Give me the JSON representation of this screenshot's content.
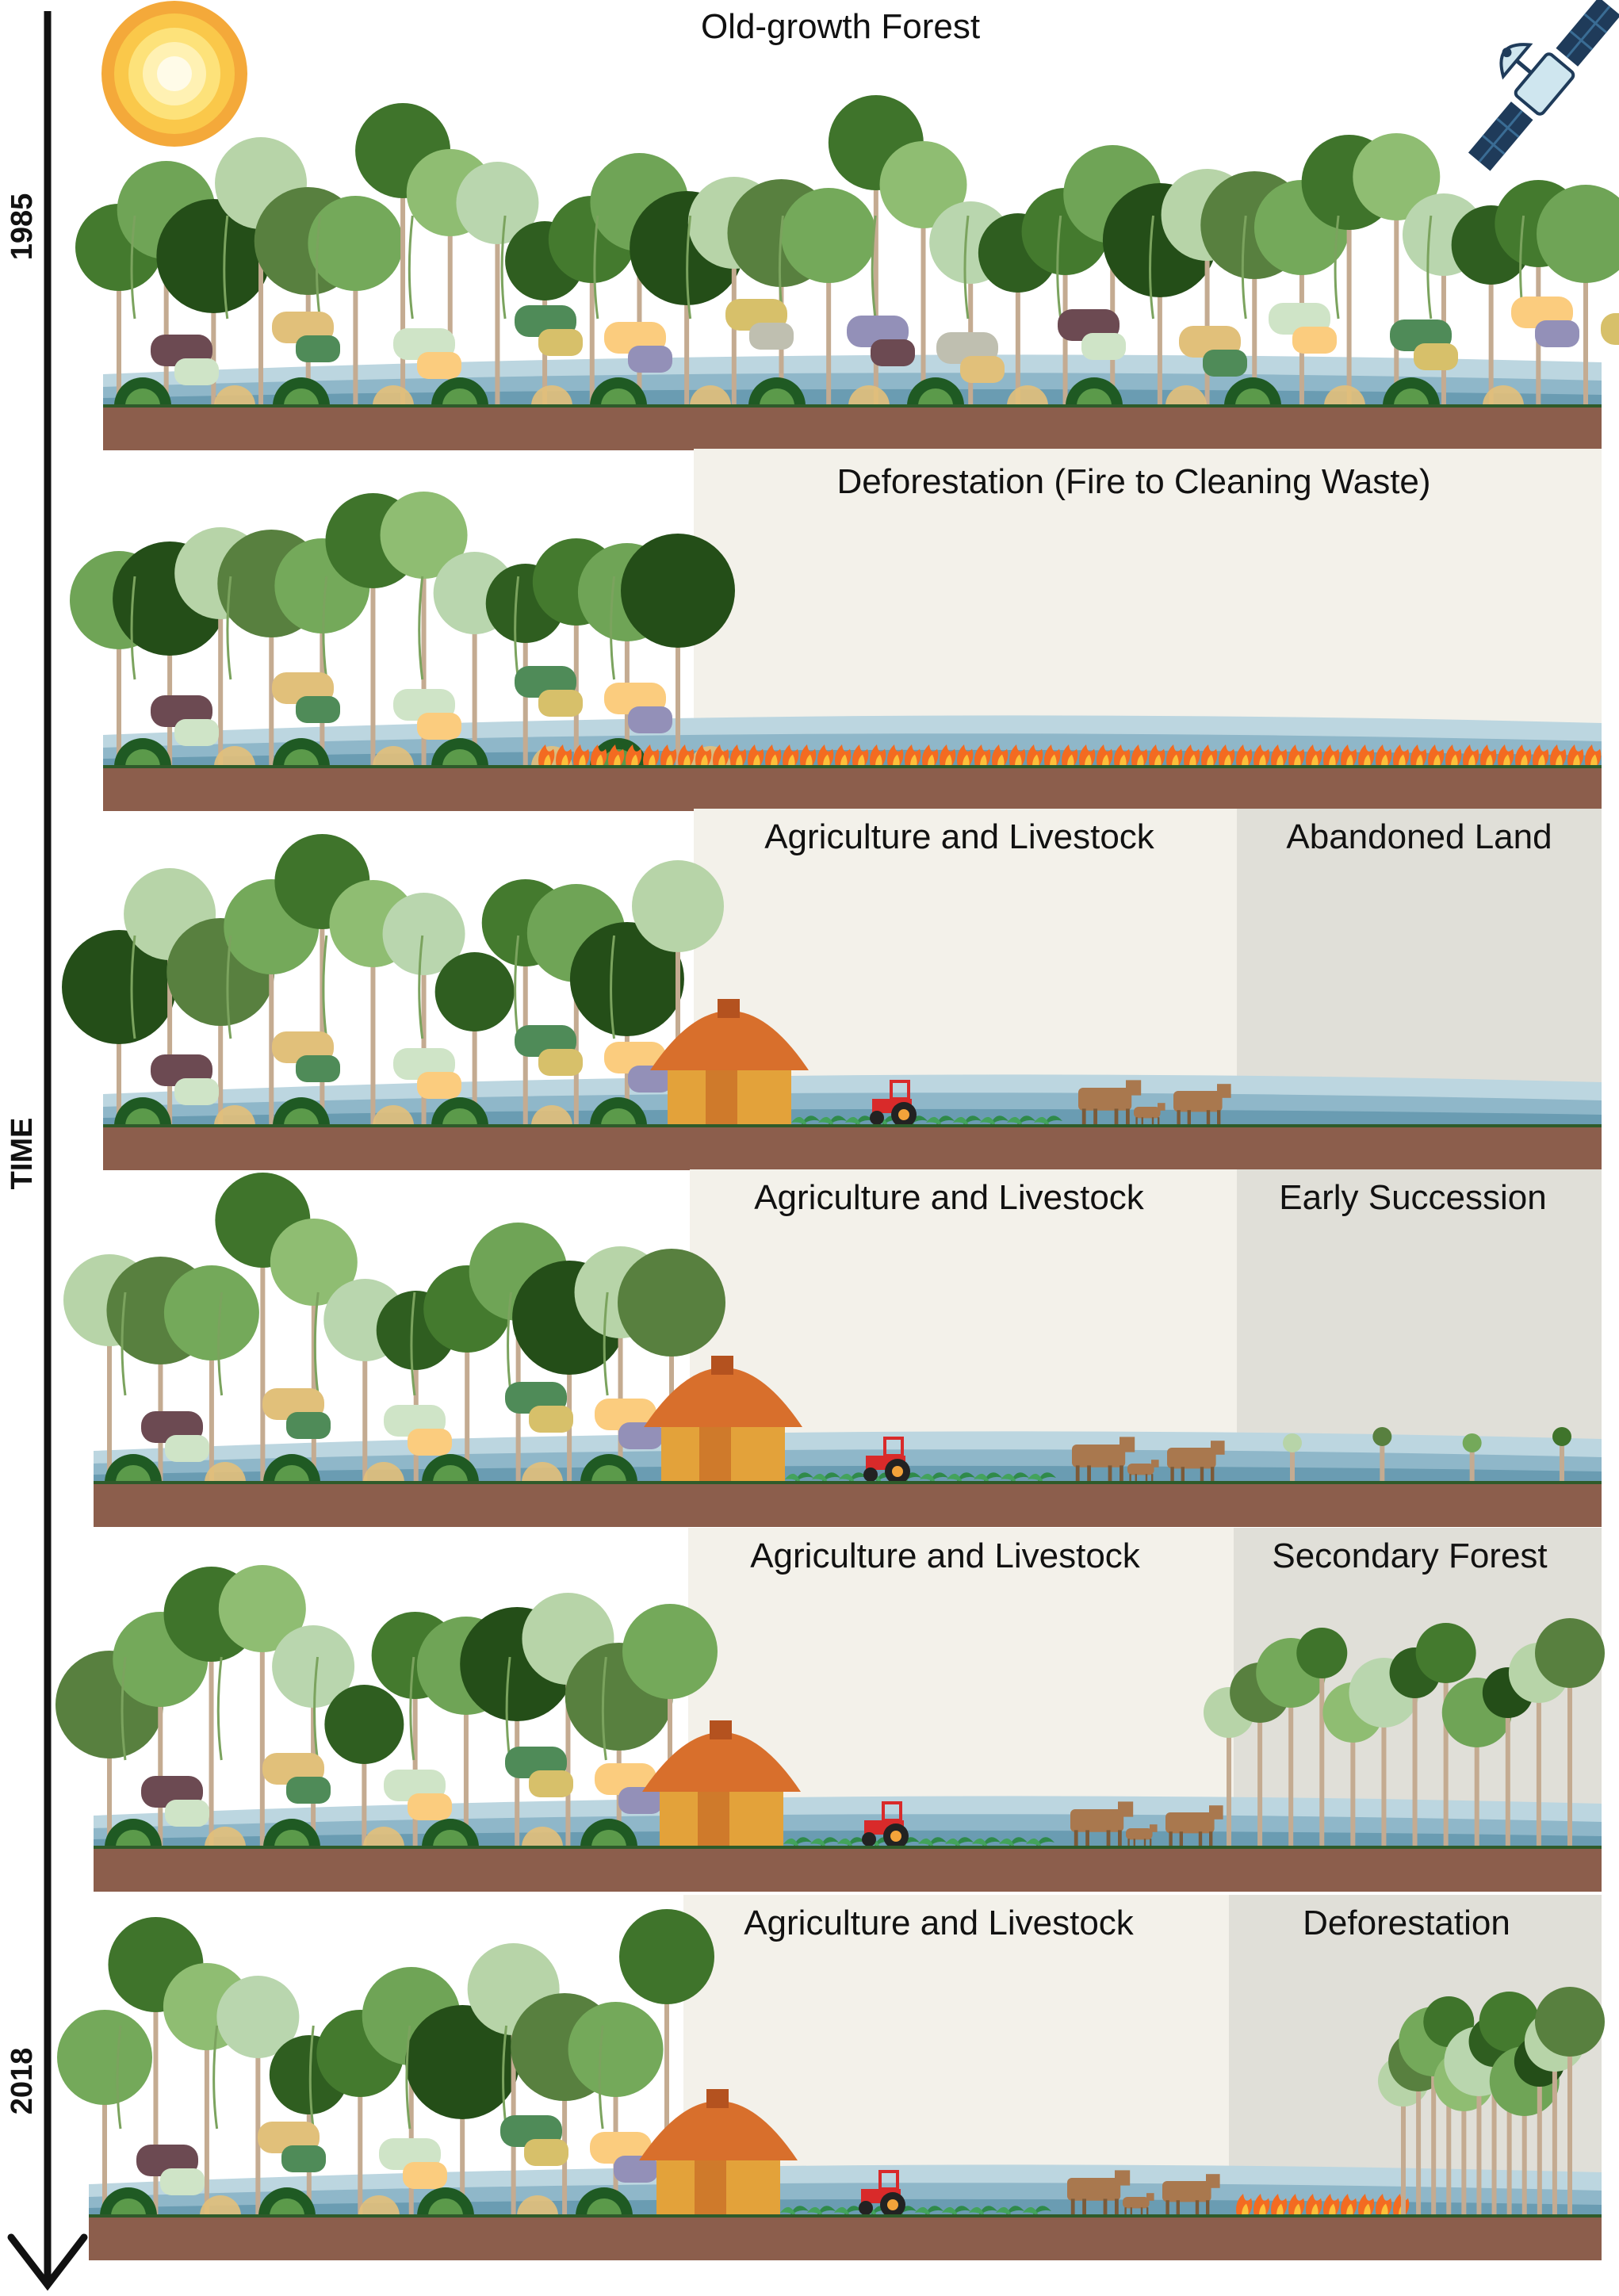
{
  "timeline": {
    "start_year": "1985",
    "end_year": "2018",
    "axis_label": "TIME"
  },
  "icons": {
    "sun": "sun-icon",
    "satellite": "satellite-icon"
  },
  "colors": {
    "soil": "#8c5e4c",
    "water_light": "#bcd6e0",
    "water_mid": "#8fb7c9",
    "water_dark": "#6a9cb2",
    "grass_line": "#2e5b2a",
    "cleared_bg": "#f3f1ea",
    "region_bg": "#e0dfd8",
    "fire": "#f36b21"
  },
  "panels": [
    {
      "id": "old-growth",
      "titles": [
        "Old-growth Forest"
      ]
    },
    {
      "id": "deforestation-fire",
      "titles": [
        "Deforestation (Fire to Cleaning Waste)"
      ]
    },
    {
      "id": "abandoned",
      "titles": [
        "Agriculture and Livestock",
        "Abandoned Land"
      ]
    },
    {
      "id": "early-succession",
      "titles": [
        "Agriculture and Livestock",
        "Early Succession"
      ]
    },
    {
      "id": "secondary-forest",
      "titles": [
        "Agriculture and Livestock",
        "Secondary Forest"
      ]
    },
    {
      "id": "re-deforestation",
      "titles": [
        "Agriculture and Livestock",
        "Deforestation"
      ]
    }
  ]
}
